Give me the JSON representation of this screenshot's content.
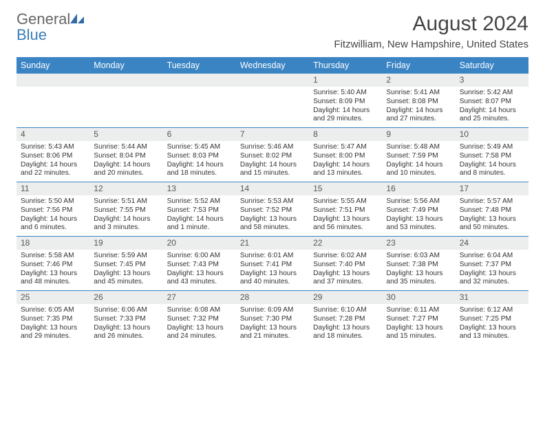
{
  "logo": {
    "text1": "General",
    "text2": "Blue"
  },
  "title": "August 2024",
  "location": "Fitzwilliam, New Hampshire, United States",
  "weekdays": [
    "Sunday",
    "Monday",
    "Tuesday",
    "Wednesday",
    "Thursday",
    "Friday",
    "Saturday"
  ],
  "colors": {
    "headerBar": "#3a84c4",
    "dayNumBg": "#eceded",
    "accent": "#3a7cb8",
    "text": "#333"
  },
  "weeks": [
    [
      {
        "empty": true
      },
      {
        "empty": true
      },
      {
        "empty": true
      },
      {
        "empty": true
      },
      {
        "num": "1",
        "sunrise": "Sunrise: 5:40 AM",
        "sunset": "Sunset: 8:09 PM",
        "day1": "Daylight: 14 hours",
        "day2": "and 29 minutes."
      },
      {
        "num": "2",
        "sunrise": "Sunrise: 5:41 AM",
        "sunset": "Sunset: 8:08 PM",
        "day1": "Daylight: 14 hours",
        "day2": "and 27 minutes."
      },
      {
        "num": "3",
        "sunrise": "Sunrise: 5:42 AM",
        "sunset": "Sunset: 8:07 PM",
        "day1": "Daylight: 14 hours",
        "day2": "and 25 minutes."
      }
    ],
    [
      {
        "num": "4",
        "sunrise": "Sunrise: 5:43 AM",
        "sunset": "Sunset: 8:06 PM",
        "day1": "Daylight: 14 hours",
        "day2": "and 22 minutes."
      },
      {
        "num": "5",
        "sunrise": "Sunrise: 5:44 AM",
        "sunset": "Sunset: 8:04 PM",
        "day1": "Daylight: 14 hours",
        "day2": "and 20 minutes."
      },
      {
        "num": "6",
        "sunrise": "Sunrise: 5:45 AM",
        "sunset": "Sunset: 8:03 PM",
        "day1": "Daylight: 14 hours",
        "day2": "and 18 minutes."
      },
      {
        "num": "7",
        "sunrise": "Sunrise: 5:46 AM",
        "sunset": "Sunset: 8:02 PM",
        "day1": "Daylight: 14 hours",
        "day2": "and 15 minutes."
      },
      {
        "num": "8",
        "sunrise": "Sunrise: 5:47 AM",
        "sunset": "Sunset: 8:00 PM",
        "day1": "Daylight: 14 hours",
        "day2": "and 13 minutes."
      },
      {
        "num": "9",
        "sunrise": "Sunrise: 5:48 AM",
        "sunset": "Sunset: 7:59 PM",
        "day1": "Daylight: 14 hours",
        "day2": "and 10 minutes."
      },
      {
        "num": "10",
        "sunrise": "Sunrise: 5:49 AM",
        "sunset": "Sunset: 7:58 PM",
        "day1": "Daylight: 14 hours",
        "day2": "and 8 minutes."
      }
    ],
    [
      {
        "num": "11",
        "sunrise": "Sunrise: 5:50 AM",
        "sunset": "Sunset: 7:56 PM",
        "day1": "Daylight: 14 hours",
        "day2": "and 6 minutes."
      },
      {
        "num": "12",
        "sunrise": "Sunrise: 5:51 AM",
        "sunset": "Sunset: 7:55 PM",
        "day1": "Daylight: 14 hours",
        "day2": "and 3 minutes."
      },
      {
        "num": "13",
        "sunrise": "Sunrise: 5:52 AM",
        "sunset": "Sunset: 7:53 PM",
        "day1": "Daylight: 14 hours",
        "day2": "and 1 minute."
      },
      {
        "num": "14",
        "sunrise": "Sunrise: 5:53 AM",
        "sunset": "Sunset: 7:52 PM",
        "day1": "Daylight: 13 hours",
        "day2": "and 58 minutes."
      },
      {
        "num": "15",
        "sunrise": "Sunrise: 5:55 AM",
        "sunset": "Sunset: 7:51 PM",
        "day1": "Daylight: 13 hours",
        "day2": "and 56 minutes."
      },
      {
        "num": "16",
        "sunrise": "Sunrise: 5:56 AM",
        "sunset": "Sunset: 7:49 PM",
        "day1": "Daylight: 13 hours",
        "day2": "and 53 minutes."
      },
      {
        "num": "17",
        "sunrise": "Sunrise: 5:57 AM",
        "sunset": "Sunset: 7:48 PM",
        "day1": "Daylight: 13 hours",
        "day2": "and 50 minutes."
      }
    ],
    [
      {
        "num": "18",
        "sunrise": "Sunrise: 5:58 AM",
        "sunset": "Sunset: 7:46 PM",
        "day1": "Daylight: 13 hours",
        "day2": "and 48 minutes."
      },
      {
        "num": "19",
        "sunrise": "Sunrise: 5:59 AM",
        "sunset": "Sunset: 7:45 PM",
        "day1": "Daylight: 13 hours",
        "day2": "and 45 minutes."
      },
      {
        "num": "20",
        "sunrise": "Sunrise: 6:00 AM",
        "sunset": "Sunset: 7:43 PM",
        "day1": "Daylight: 13 hours",
        "day2": "and 43 minutes."
      },
      {
        "num": "21",
        "sunrise": "Sunrise: 6:01 AM",
        "sunset": "Sunset: 7:41 PM",
        "day1": "Daylight: 13 hours",
        "day2": "and 40 minutes."
      },
      {
        "num": "22",
        "sunrise": "Sunrise: 6:02 AM",
        "sunset": "Sunset: 7:40 PM",
        "day1": "Daylight: 13 hours",
        "day2": "and 37 minutes."
      },
      {
        "num": "23",
        "sunrise": "Sunrise: 6:03 AM",
        "sunset": "Sunset: 7:38 PM",
        "day1": "Daylight: 13 hours",
        "day2": "and 35 minutes."
      },
      {
        "num": "24",
        "sunrise": "Sunrise: 6:04 AM",
        "sunset": "Sunset: 7:37 PM",
        "day1": "Daylight: 13 hours",
        "day2": "and 32 minutes."
      }
    ],
    [
      {
        "num": "25",
        "sunrise": "Sunrise: 6:05 AM",
        "sunset": "Sunset: 7:35 PM",
        "day1": "Daylight: 13 hours",
        "day2": "and 29 minutes."
      },
      {
        "num": "26",
        "sunrise": "Sunrise: 6:06 AM",
        "sunset": "Sunset: 7:33 PM",
        "day1": "Daylight: 13 hours",
        "day2": "and 26 minutes."
      },
      {
        "num": "27",
        "sunrise": "Sunrise: 6:08 AM",
        "sunset": "Sunset: 7:32 PM",
        "day1": "Daylight: 13 hours",
        "day2": "and 24 minutes."
      },
      {
        "num": "28",
        "sunrise": "Sunrise: 6:09 AM",
        "sunset": "Sunset: 7:30 PM",
        "day1": "Daylight: 13 hours",
        "day2": "and 21 minutes."
      },
      {
        "num": "29",
        "sunrise": "Sunrise: 6:10 AM",
        "sunset": "Sunset: 7:28 PM",
        "day1": "Daylight: 13 hours",
        "day2": "and 18 minutes."
      },
      {
        "num": "30",
        "sunrise": "Sunrise: 6:11 AM",
        "sunset": "Sunset: 7:27 PM",
        "day1": "Daylight: 13 hours",
        "day2": "and 15 minutes."
      },
      {
        "num": "31",
        "sunrise": "Sunrise: 6:12 AM",
        "sunset": "Sunset: 7:25 PM",
        "day1": "Daylight: 13 hours",
        "day2": "and 13 minutes."
      }
    ]
  ]
}
